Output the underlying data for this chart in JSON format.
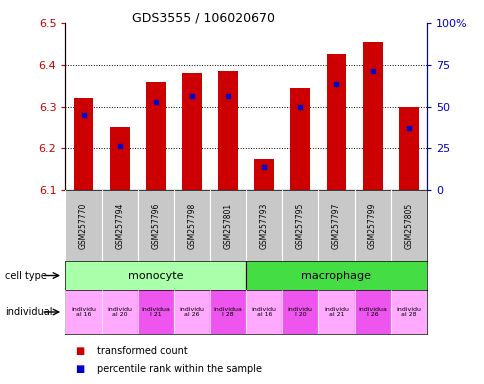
{
  "title": "GDS3555 / 106020670",
  "samples": [
    "GSM257770",
    "GSM257794",
    "GSM257796",
    "GSM257798",
    "GSM257801",
    "GSM257793",
    "GSM257795",
    "GSM257797",
    "GSM257799",
    "GSM257805"
  ],
  "red_values": [
    6.32,
    6.25,
    6.36,
    6.38,
    6.385,
    6.175,
    6.345,
    6.425,
    6.455,
    6.3
  ],
  "blue_values": [
    6.28,
    6.205,
    6.31,
    6.325,
    6.325,
    6.155,
    6.3,
    6.355,
    6.385,
    6.248
  ],
  "y_min": 6.1,
  "y_max": 6.5,
  "y_ticks_left": [
    6.1,
    6.2,
    6.3,
    6.4,
    6.5
  ],
  "y_ticks_right": [
    0,
    25,
    50,
    75,
    100
  ],
  "cell_types": [
    {
      "label": "monocyte",
      "start": 0,
      "end": 5,
      "color": "#AAFFAA"
    },
    {
      "label": "macrophage",
      "start": 5,
      "end": 10,
      "color": "#44DD44"
    }
  ],
  "ind_colors": [
    "#FFAAFF",
    "#FFAAFF",
    "#EE55EE",
    "#FFAAFF",
    "#EE55EE",
    "#FFAAFF",
    "#EE55EE",
    "#FFAAFF",
    "#EE55EE",
    "#FFAAFF"
  ],
  "ind_labels": [
    "individu\nal 16",
    "individu\nal 20",
    "individua\nl 21",
    "individu\nal 26",
    "individua\nl 28",
    "individu\nal 16",
    "individu\nl 20",
    "individu\nal 21",
    "individua\nl 26",
    "individu\nal 28"
  ],
  "bar_color": "#CC0000",
  "dot_color": "#0000CC",
  "plot_bg": "#FFFFFF",
  "label_color_left": "#CC0000",
  "label_color_right": "#0000CC",
  "sample_bg": "#C8C8C8",
  "grid_lines": [
    6.2,
    6.3,
    6.4
  ]
}
